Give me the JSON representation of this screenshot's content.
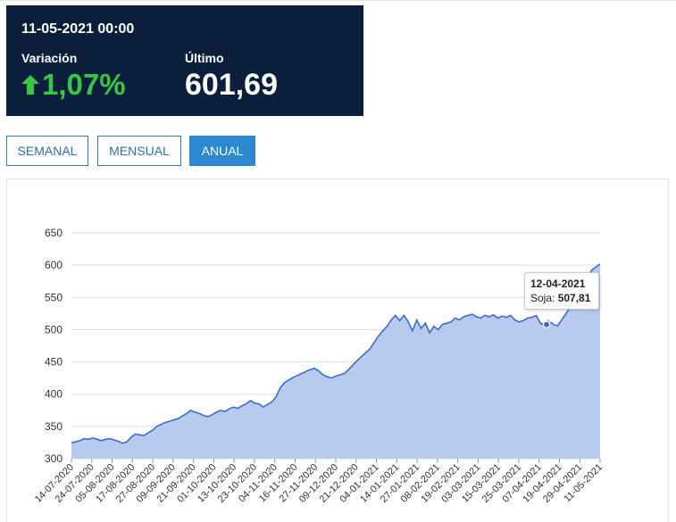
{
  "quote": {
    "datetime": "11-05-2021 00:00",
    "variation_label": "Variación",
    "variation_value": "1,07%",
    "variation_direction": "up",
    "last_label": "Último",
    "last_value": "601,69",
    "panel_color": "#0a1f3c",
    "positive_color": "#37c742"
  },
  "period_buttons": [
    {
      "label": "SEMANAL",
      "active": false
    },
    {
      "label": "MENSUAL",
      "active": false
    },
    {
      "label": "ANUAL",
      "active": true
    }
  ],
  "tooltip": {
    "date": "12-04-2021",
    "series": "Soja",
    "value": "507,81"
  },
  "chart_data": {
    "type": "area",
    "ylim": [
      300,
      650
    ],
    "y_ticks": [
      300,
      350,
      400,
      450,
      500,
      550,
      600,
      650
    ],
    "grid": true,
    "line_color": "#3a6bd0",
    "fill_color": "#b8cbef",
    "x_tick_labels": [
      "14-07-2020",
      "24-07-2020",
      "05-08-2020",
      "17-08-2020",
      "27-08-2020",
      "09-09-2020",
      "21-09-2020",
      "01-10-2020",
      "13-10-2020",
      "23-10-2020",
      "04-11-2020",
      "16-11-2020",
      "27-11-2020",
      "09-12-2020",
      "21-12-2020",
      "04-01-2021",
      "14-01-2021",
      "27-01-2021",
      "08-02-2021",
      "19-02-2021",
      "03-03-2021",
      "15-03-2021",
      "25-03-2021",
      "07-04-2021",
      "19-04-2021",
      "29-04-2021",
      "11-05-2021"
    ],
    "values": [
      325,
      326,
      328,
      331,
      330,
      332,
      330,
      328,
      330,
      331,
      329,
      327,
      324,
      326,
      333,
      338,
      337,
      336,
      340,
      344,
      350,
      353,
      356,
      358,
      360,
      362,
      366,
      370,
      375,
      372,
      370,
      367,
      365,
      368,
      372,
      375,
      373,
      377,
      380,
      378,
      382,
      385,
      390,
      386,
      385,
      380,
      384,
      388,
      396,
      410,
      418,
      422,
      426,
      429,
      432,
      435,
      438,
      440,
      436,
      430,
      427,
      425,
      428,
      430,
      432,
      438,
      445,
      452,
      458,
      464,
      470,
      480,
      490,
      498,
      505,
      515,
      522,
      514,
      522,
      512,
      498,
      515,
      502,
      510,
      495,
      505,
      500,
      508,
      510,
      512,
      518,
      515,
      520,
      522,
      524,
      520,
      518,
      522,
      520,
      523,
      518,
      521,
      519,
      522,
      515,
      512,
      514,
      518,
      519,
      522,
      510,
      507,
      514,
      508,
      506,
      515,
      525,
      535,
      548,
      560,
      570,
      580,
      592,
      597,
      601.69
    ],
    "highlight": {
      "date": "12-04-2021",
      "value": 507.81
    }
  }
}
